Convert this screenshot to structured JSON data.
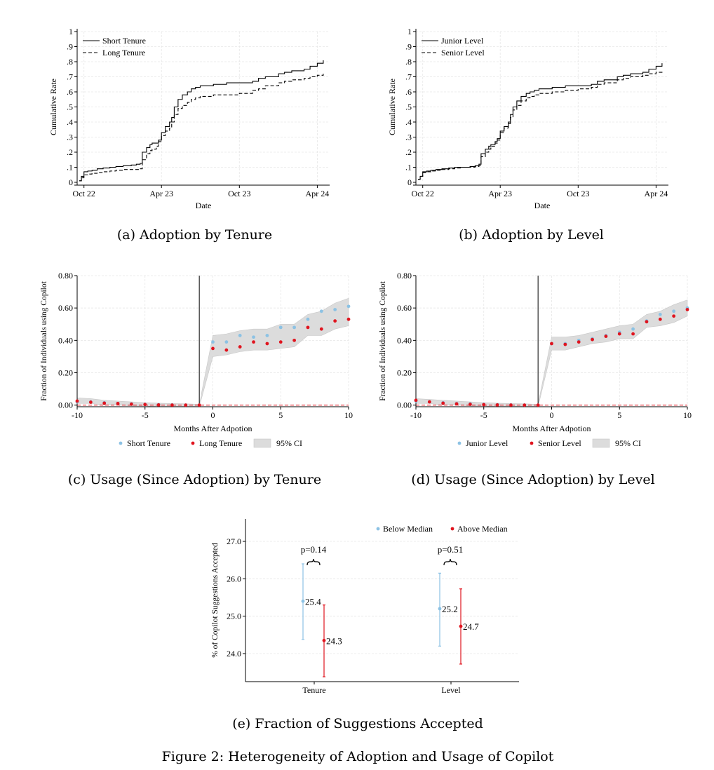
{
  "figure_caption": "Figure 2: Heterogeneity of Adoption and Usage of Copilot",
  "colors": {
    "blue": "#8cc2e4",
    "red": "#e0141e",
    "ci": "#dcdcdc",
    "black": "#000000"
  },
  "chart_data": [
    {
      "id": "a",
      "type": "line",
      "step": true,
      "caption": "(a) Adoption by Tenure",
      "title": "",
      "xlabel": "Date",
      "ylabel": "Cumulative Rate",
      "ylim": [
        0,
        1
      ],
      "yticks": [
        0,
        0.1,
        0.2,
        0.3,
        0.4,
        0.5,
        0.6,
        0.7,
        0.8,
        0.9,
        1
      ],
      "ytick_labels": [
        "0",
        ".1",
        ".2",
        ".3",
        ".4",
        ".5",
        ".6",
        ".7",
        ".8",
        ".9",
        "1"
      ],
      "xlim": [
        "2022-09-15",
        "2024-04-30"
      ],
      "xticks": [
        "2022-10-01",
        "2023-04-01",
        "2023-10-01",
        "2024-04-01"
      ],
      "xtick_labels": [
        "Oct 22",
        "Apr 23",
        "Oct 23",
        "Apr 24"
      ],
      "grid": true,
      "legend": "top-left",
      "series": [
        {
          "name": "Short Tenure",
          "dash": "solid",
          "x": [
            "2022-09-20",
            "2022-09-25",
            "2022-10-01",
            "2022-10-10",
            "2022-10-20",
            "2022-11-01",
            "2022-11-15",
            "2022-12-01",
            "2022-12-15",
            "2023-01-01",
            "2023-01-20",
            "2023-02-01",
            "2023-02-10",
            "2023-02-15",
            "2023-02-25",
            "2023-03-05",
            "2023-03-10",
            "2023-03-20",
            "2023-03-25",
            "2023-04-01",
            "2023-04-10",
            "2023-04-20",
            "2023-04-25",
            "2023-05-01",
            "2023-05-10",
            "2023-05-20",
            "2023-06-01",
            "2023-06-10",
            "2023-06-20",
            "2023-07-01",
            "2023-08-01",
            "2023-09-01",
            "2023-10-01",
            "2023-11-01",
            "2023-11-15",
            "2023-12-01",
            "2024-01-01",
            "2024-01-15",
            "2024-02-01",
            "2024-03-01",
            "2024-03-15",
            "2024-04-01",
            "2024-04-15"
          ],
          "y": [
            0.01,
            0.04,
            0.07,
            0.075,
            0.08,
            0.09,
            0.095,
            0.1,
            0.105,
            0.11,
            0.115,
            0.12,
            0.125,
            0.2,
            0.23,
            0.25,
            0.26,
            0.26,
            0.28,
            0.33,
            0.37,
            0.4,
            0.43,
            0.5,
            0.55,
            0.58,
            0.6,
            0.62,
            0.63,
            0.64,
            0.65,
            0.66,
            0.66,
            0.67,
            0.69,
            0.7,
            0.72,
            0.73,
            0.74,
            0.75,
            0.77,
            0.79,
            0.81
          ]
        },
        {
          "name": "Long Tenure",
          "dash": "dashed",
          "x": [
            "2022-09-20",
            "2022-09-25",
            "2022-10-01",
            "2022-10-10",
            "2022-10-20",
            "2022-11-01",
            "2022-11-15",
            "2022-12-01",
            "2022-12-15",
            "2023-01-01",
            "2023-01-20",
            "2023-02-01",
            "2023-02-10",
            "2023-02-15",
            "2023-02-25",
            "2023-03-05",
            "2023-03-10",
            "2023-03-20",
            "2023-03-25",
            "2023-04-01",
            "2023-04-10",
            "2023-04-20",
            "2023-04-25",
            "2023-05-01",
            "2023-05-10",
            "2023-05-20",
            "2023-06-01",
            "2023-06-10",
            "2023-06-20",
            "2023-07-01",
            "2023-08-01",
            "2023-09-01",
            "2023-10-01",
            "2023-11-01",
            "2023-11-15",
            "2023-12-01",
            "2024-01-01",
            "2024-01-15",
            "2024-02-01",
            "2024-03-01",
            "2024-03-15",
            "2024-04-01",
            "2024-04-15"
          ],
          "y": [
            0.01,
            0.03,
            0.05,
            0.055,
            0.06,
            0.065,
            0.07,
            0.075,
            0.08,
            0.085,
            0.085,
            0.085,
            0.09,
            0.15,
            0.19,
            0.21,
            0.22,
            0.24,
            0.27,
            0.31,
            0.34,
            0.36,
            0.4,
            0.45,
            0.49,
            0.51,
            0.53,
            0.55,
            0.56,
            0.57,
            0.58,
            0.58,
            0.59,
            0.61,
            0.62,
            0.64,
            0.66,
            0.67,
            0.68,
            0.69,
            0.7,
            0.71,
            0.72
          ]
        }
      ]
    },
    {
      "id": "b",
      "type": "line",
      "step": true,
      "caption": "(b) Adoption by Level",
      "title": "",
      "xlabel": "Date",
      "ylabel": "Cumulative Rate",
      "ylim": [
        0,
        1
      ],
      "yticks": [
        0,
        0.1,
        0.2,
        0.3,
        0.4,
        0.5,
        0.6,
        0.7,
        0.8,
        0.9,
        1
      ],
      "ytick_labels": [
        "0",
        ".1",
        ".2",
        ".3",
        ".4",
        ".5",
        ".6",
        ".7",
        ".8",
        ".9",
        "1"
      ],
      "xlim": [
        "2022-09-15",
        "2024-04-30"
      ],
      "xticks": [
        "2022-10-01",
        "2023-04-01",
        "2023-10-01",
        "2024-04-01"
      ],
      "xtick_labels": [
        "Oct 22",
        "Apr 23",
        "Oct 23",
        "Apr 24"
      ],
      "grid": true,
      "legend": "top-left",
      "series": [
        {
          "name": "Junior Level",
          "dash": "solid",
          "x": [
            "2022-09-20",
            "2022-09-25",
            "2022-10-01",
            "2022-10-10",
            "2022-10-20",
            "2022-11-01",
            "2022-11-15",
            "2022-12-01",
            "2022-12-15",
            "2023-01-01",
            "2023-01-20",
            "2023-02-01",
            "2023-02-10",
            "2023-02-15",
            "2023-02-25",
            "2023-03-05",
            "2023-03-10",
            "2023-03-20",
            "2023-03-25",
            "2023-04-01",
            "2023-04-10",
            "2023-04-20",
            "2023-04-25",
            "2023-05-01",
            "2023-05-10",
            "2023-05-20",
            "2023-06-01",
            "2023-06-10",
            "2023-06-20",
            "2023-07-01",
            "2023-08-01",
            "2023-09-01",
            "2023-10-01",
            "2023-11-01",
            "2023-11-15",
            "2023-12-01",
            "2024-01-01",
            "2024-01-15",
            "2024-02-01",
            "2024-03-01",
            "2024-03-15",
            "2024-04-01",
            "2024-04-15"
          ],
          "y": [
            0.02,
            0.04,
            0.07,
            0.075,
            0.08,
            0.085,
            0.09,
            0.095,
            0.1,
            0.1,
            0.105,
            0.11,
            0.12,
            0.19,
            0.22,
            0.24,
            0.25,
            0.27,
            0.29,
            0.34,
            0.37,
            0.4,
            0.45,
            0.5,
            0.54,
            0.57,
            0.59,
            0.6,
            0.61,
            0.62,
            0.63,
            0.64,
            0.64,
            0.65,
            0.67,
            0.68,
            0.7,
            0.71,
            0.72,
            0.73,
            0.75,
            0.77,
            0.79
          ]
        },
        {
          "name": "Senior Level",
          "dash": "dashed",
          "x": [
            "2022-09-20",
            "2022-09-25",
            "2022-10-01",
            "2022-10-10",
            "2022-10-20",
            "2022-11-01",
            "2022-11-15",
            "2022-12-01",
            "2022-12-15",
            "2023-01-01",
            "2023-01-20",
            "2023-02-01",
            "2023-02-10",
            "2023-02-15",
            "2023-02-25",
            "2023-03-05",
            "2023-03-10",
            "2023-03-20",
            "2023-03-25",
            "2023-04-01",
            "2023-04-10",
            "2023-04-20",
            "2023-04-25",
            "2023-05-01",
            "2023-05-10",
            "2023-05-20",
            "2023-06-01",
            "2023-06-10",
            "2023-06-20",
            "2023-07-01",
            "2023-08-01",
            "2023-09-01",
            "2023-10-01",
            "2023-11-01",
            "2023-11-15",
            "2023-12-01",
            "2024-01-01",
            "2024-01-15",
            "2024-02-01",
            "2024-03-01",
            "2024-03-15",
            "2024-04-01",
            "2024-04-15"
          ],
          "y": [
            0.02,
            0.04,
            0.065,
            0.07,
            0.075,
            0.08,
            0.085,
            0.09,
            0.095,
            0.1,
            0.1,
            0.105,
            0.11,
            0.17,
            0.2,
            0.22,
            0.24,
            0.26,
            0.28,
            0.33,
            0.36,
            0.39,
            0.43,
            0.48,
            0.51,
            0.54,
            0.56,
            0.57,
            0.58,
            0.59,
            0.6,
            0.61,
            0.62,
            0.63,
            0.65,
            0.66,
            0.68,
            0.69,
            0.7,
            0.71,
            0.72,
            0.73,
            0.74
          ]
        }
      ]
    },
    {
      "id": "c",
      "type": "scatter",
      "caption": "(c) Usage (Since Adoption) by Tenure",
      "title": "",
      "xlabel": "Months After Adpotion",
      "ylabel": "Fraction of Individuals using Copilot",
      "xlim": [
        -10,
        10
      ],
      "ylim": [
        -0.01,
        0.8
      ],
      "xticks": [
        -10,
        -5,
        0,
        5,
        10
      ],
      "xtick_labels": [
        "-10",
        "-5",
        "0",
        "5",
        "10"
      ],
      "yticks": [
        0,
        0.2,
        0.4,
        0.6,
        0.8
      ],
      "ytick_labels": [
        "0.00",
        "0.20",
        "0.40",
        "0.60",
        "0.80"
      ],
      "grid": true,
      "legend": "bottom",
      "legend_ci_label": "95% CI",
      "event_line_x": -1,
      "zero_line": true,
      "x": [
        -10,
        -9,
        -8,
        -7,
        -6,
        -5,
        -4,
        -3,
        -2,
        -1,
        0,
        1,
        2,
        3,
        4,
        5,
        6,
        7,
        8,
        9,
        10
      ],
      "ci_band": {
        "lower": [
          0.01,
          0.01,
          0.0,
          0.0,
          -0.005,
          -0.005,
          -0.01,
          -0.01,
          -0.01,
          -0.01,
          0.3,
          0.31,
          0.33,
          0.34,
          0.34,
          0.35,
          0.36,
          0.43,
          0.43,
          0.47,
          0.49
        ],
        "upper": [
          0.045,
          0.04,
          0.03,
          0.025,
          0.02,
          0.015,
          0.012,
          0.01,
          0.008,
          0.005,
          0.43,
          0.44,
          0.46,
          0.47,
          0.47,
          0.5,
          0.5,
          0.56,
          0.58,
          0.63,
          0.66
        ]
      },
      "series": [
        {
          "name": "Short Tenure",
          "color": "#8cc2e4",
          "y": [
            0.02,
            0.02,
            0.015,
            0.01,
            0.008,
            0.005,
            0.003,
            0.001,
            0.0,
            0.0,
            0.39,
            0.39,
            0.43,
            0.42,
            0.43,
            0.48,
            0.48,
            0.53,
            0.58,
            0.59,
            0.61
          ]
        },
        {
          "name": "Long Tenure",
          "color": "#e0141e",
          "y": [
            0.025,
            0.018,
            0.012,
            0.01,
            0.006,
            0.004,
            0.001,
            0.0,
            0.0,
            0.0,
            0.35,
            0.34,
            0.36,
            0.39,
            0.38,
            0.39,
            0.4,
            0.48,
            0.47,
            0.52,
            0.53
          ]
        }
      ]
    },
    {
      "id": "d",
      "type": "scatter",
      "caption": "(d) Usage (Since Adoption) by Level",
      "title": "",
      "xlabel": "Months After Adpotion",
      "ylabel": "Fraction of Individuals using Copilot",
      "xlim": [
        -10,
        10
      ],
      "ylim": [
        -0.01,
        0.8
      ],
      "xticks": [
        -10,
        -5,
        0,
        5,
        10
      ],
      "xtick_labels": [
        "-10",
        "-5",
        "0",
        "5",
        "10"
      ],
      "yticks": [
        0,
        0.2,
        0.4,
        0.6,
        0.8
      ],
      "ytick_labels": [
        "0.00",
        "0.20",
        "0.40",
        "0.60",
        "0.80"
      ],
      "grid": true,
      "legend": "bottom",
      "legend_ci_label": "95% CI",
      "event_line_x": -1,
      "zero_line": true,
      "x": [
        -10,
        -9,
        -8,
        -7,
        -6,
        -5,
        -4,
        -3,
        -2,
        -1,
        0,
        1,
        2,
        3,
        4,
        5,
        6,
        7,
        8,
        9,
        10
      ],
      "ci_band": {
        "lower": [
          0.01,
          0.01,
          0.0,
          0.0,
          -0.005,
          -0.005,
          -0.01,
          -0.01,
          -0.01,
          -0.01,
          0.34,
          0.34,
          0.36,
          0.38,
          0.39,
          0.41,
          0.41,
          0.48,
          0.49,
          0.51,
          0.55
        ],
        "upper": [
          0.04,
          0.035,
          0.03,
          0.025,
          0.02,
          0.015,
          0.012,
          0.01,
          0.008,
          0.005,
          0.42,
          0.42,
          0.43,
          0.45,
          0.47,
          0.49,
          0.5,
          0.56,
          0.58,
          0.62,
          0.65
        ]
      },
      "series": [
        {
          "name": "Junior Level",
          "color": "#8cc2e4",
          "y": [
            0.025,
            0.02,
            0.015,
            0.01,
            0.008,
            0.005,
            0.003,
            0.001,
            0.0,
            0.0,
            0.38,
            0.38,
            0.4,
            0.41,
            0.43,
            0.45,
            0.47,
            0.52,
            0.56,
            0.58,
            0.6
          ]
        },
        {
          "name": "Senior Level",
          "color": "#e0141e",
          "y": [
            0.03,
            0.02,
            0.012,
            0.008,
            0.005,
            0.003,
            0.001,
            0.0,
            0.0,
            0.0,
            0.38,
            0.375,
            0.39,
            0.405,
            0.425,
            0.44,
            0.44,
            0.515,
            0.53,
            0.55,
            0.59
          ]
        }
      ]
    },
    {
      "id": "e",
      "type": "scatter",
      "subtype": "point-range",
      "caption": "(e) Fraction of Suggestions Accepted",
      "title": "",
      "xlabel": "",
      "ylabel": "% of Copilot Suggestions Accepted",
      "ylim": [
        23.25,
        27.6
      ],
      "yticks": [
        24,
        25,
        26,
        27
      ],
      "ytick_labels": [
        "24.0",
        "25.0",
        "26.0",
        "27.0"
      ],
      "categories": [
        "Tenure",
        "Level"
      ],
      "grid": true,
      "legend": "top-right",
      "series": [
        {
          "name": "Below Median",
          "color": "#8cc2e4",
          "values": [
            25.4,
            25.2
          ],
          "value_labels": [
            "25.4",
            "25.2"
          ],
          "ci_low": [
            24.38,
            24.2
          ],
          "ci_high": [
            26.4,
            26.15
          ]
        },
        {
          "name": "Above Median",
          "color": "#e0141e",
          "values": [
            24.35,
            24.73
          ],
          "value_labels": [
            "24.3",
            "24.7"
          ],
          "ci_low": [
            23.38,
            23.72
          ],
          "ci_high": [
            25.3,
            25.73
          ]
        }
      ],
      "p_values": [
        "p=0.14",
        "p=0.51"
      ]
    }
  ]
}
